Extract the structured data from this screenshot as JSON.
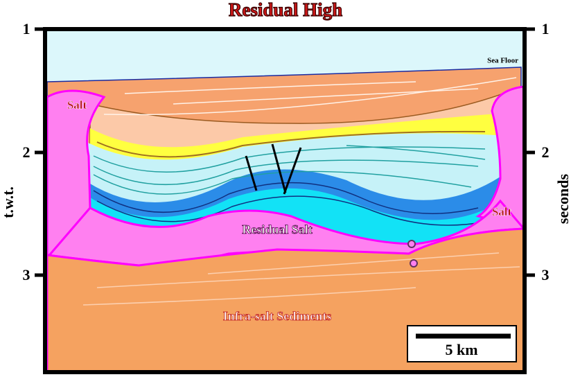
{
  "title": "Residual High",
  "left_axis": {
    "label": "t.w.t.",
    "ticks": [
      1,
      2,
      3
    ]
  },
  "right_axis": {
    "label": "seconds",
    "ticks": [
      1,
      2,
      3
    ]
  },
  "labels": {
    "sea_floor": "Sea Floor",
    "salt_left": "Salt",
    "salt_right": "Salt",
    "residual_salt": "Residual Salt",
    "infra_salt": "Infra-salt Sediments"
  },
  "scale_bar": "5 km"
}
